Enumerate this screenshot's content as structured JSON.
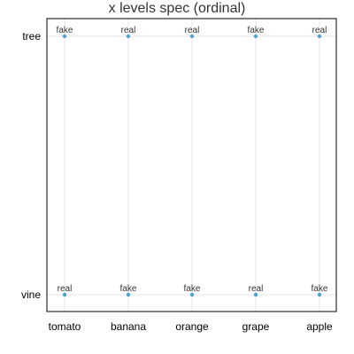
{
  "chart_data": {
    "type": "scatter",
    "title": "x levels spec (ordinal)",
    "xlabel": "",
    "ylabel": "",
    "x_categories": [
      "tomato",
      "banana",
      "orange",
      "grape",
      "apple"
    ],
    "y_categories": [
      "tree",
      "vine"
    ],
    "grid": true,
    "point_color": "#4a9fd5",
    "points": [
      {
        "x": "tomato",
        "y": "tree",
        "label": "fake"
      },
      {
        "x": "banana",
        "y": "tree",
        "label": "real"
      },
      {
        "x": "orange",
        "y": "tree",
        "label": "real"
      },
      {
        "x": "grape",
        "y": "tree",
        "label": "fake"
      },
      {
        "x": "apple",
        "y": "tree",
        "label": "real"
      },
      {
        "x": "tomato",
        "y": "vine",
        "label": "real"
      },
      {
        "x": "banana",
        "y": "vine",
        "label": "fake"
      },
      {
        "x": "orange",
        "y": "vine",
        "label": "fake"
      },
      {
        "x": "grape",
        "y": "vine",
        "label": "real"
      },
      {
        "x": "apple",
        "y": "vine",
        "label": "fake"
      }
    ]
  }
}
